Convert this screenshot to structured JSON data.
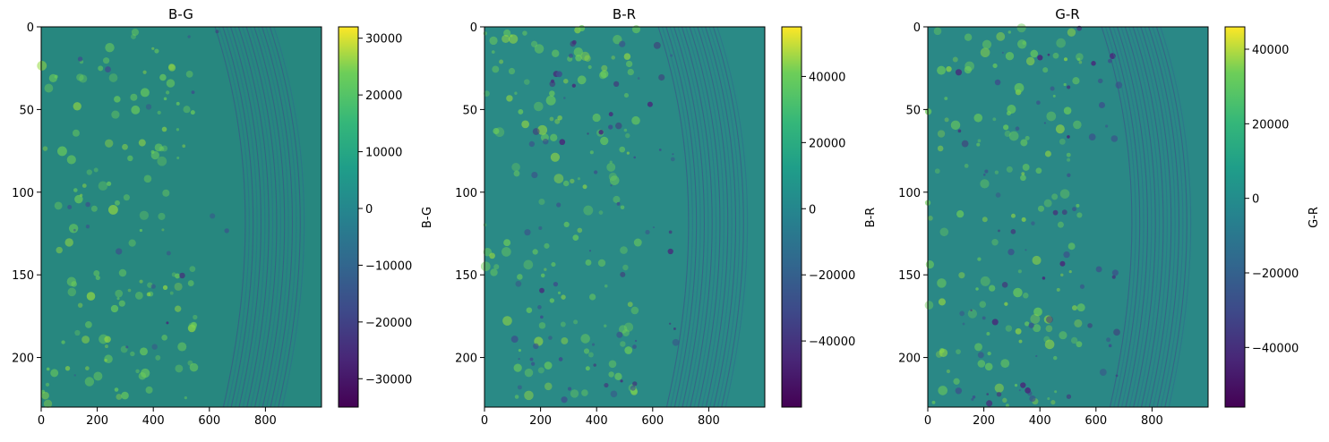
{
  "chart_data": [
    {
      "type": "heatmap",
      "title": "B-G",
      "colormap": "viridis",
      "x_ticks": [
        "0",
        "200",
        "400",
        "600",
        "800"
      ],
      "y_ticks": [
        "0",
        "50",
        "100",
        "150",
        "200"
      ],
      "xlim": [
        0,
        1000
      ],
      "ylim": [
        230,
        0
      ],
      "colorbar": {
        "label": "B-G",
        "range": [
          -35000,
          32000
        ],
        "ticks": [
          "30000",
          "20000",
          "10000",
          "0",
          "−10000",
          "−20000",
          "−30000"
        ]
      }
    },
    {
      "type": "heatmap",
      "title": "B-R",
      "colormap": "viridis",
      "x_ticks": [
        "0",
        "200",
        "400",
        "600",
        "800"
      ],
      "y_ticks": [
        "0",
        "50",
        "100",
        "150",
        "200"
      ],
      "xlim": [
        0,
        1000
      ],
      "ylim": [
        230,
        0
      ],
      "colorbar": {
        "label": "B-R",
        "range": [
          -60000,
          55000
        ],
        "ticks": [
          "40000",
          "20000",
          "0",
          "−20000",
          "−40000"
        ]
      }
    },
    {
      "type": "heatmap",
      "title": "G-R",
      "colormap": "viridis",
      "x_ticks": [
        "0",
        "200",
        "400",
        "600",
        "800"
      ],
      "y_ticks": [
        "0",
        "50",
        "100",
        "150",
        "200"
      ],
      "xlim": [
        0,
        1000
      ],
      "ylim": [
        230,
        0
      ],
      "colorbar": {
        "label": "G-R",
        "range": [
          -56000,
          46000
        ],
        "ticks": [
          "40000",
          "20000",
          "0",
          "−20000",
          "−40000"
        ]
      }
    }
  ],
  "colors": {
    "viridis_low": "#440154",
    "viridis_mid": "#21918c",
    "viridis_high": "#fde725"
  }
}
